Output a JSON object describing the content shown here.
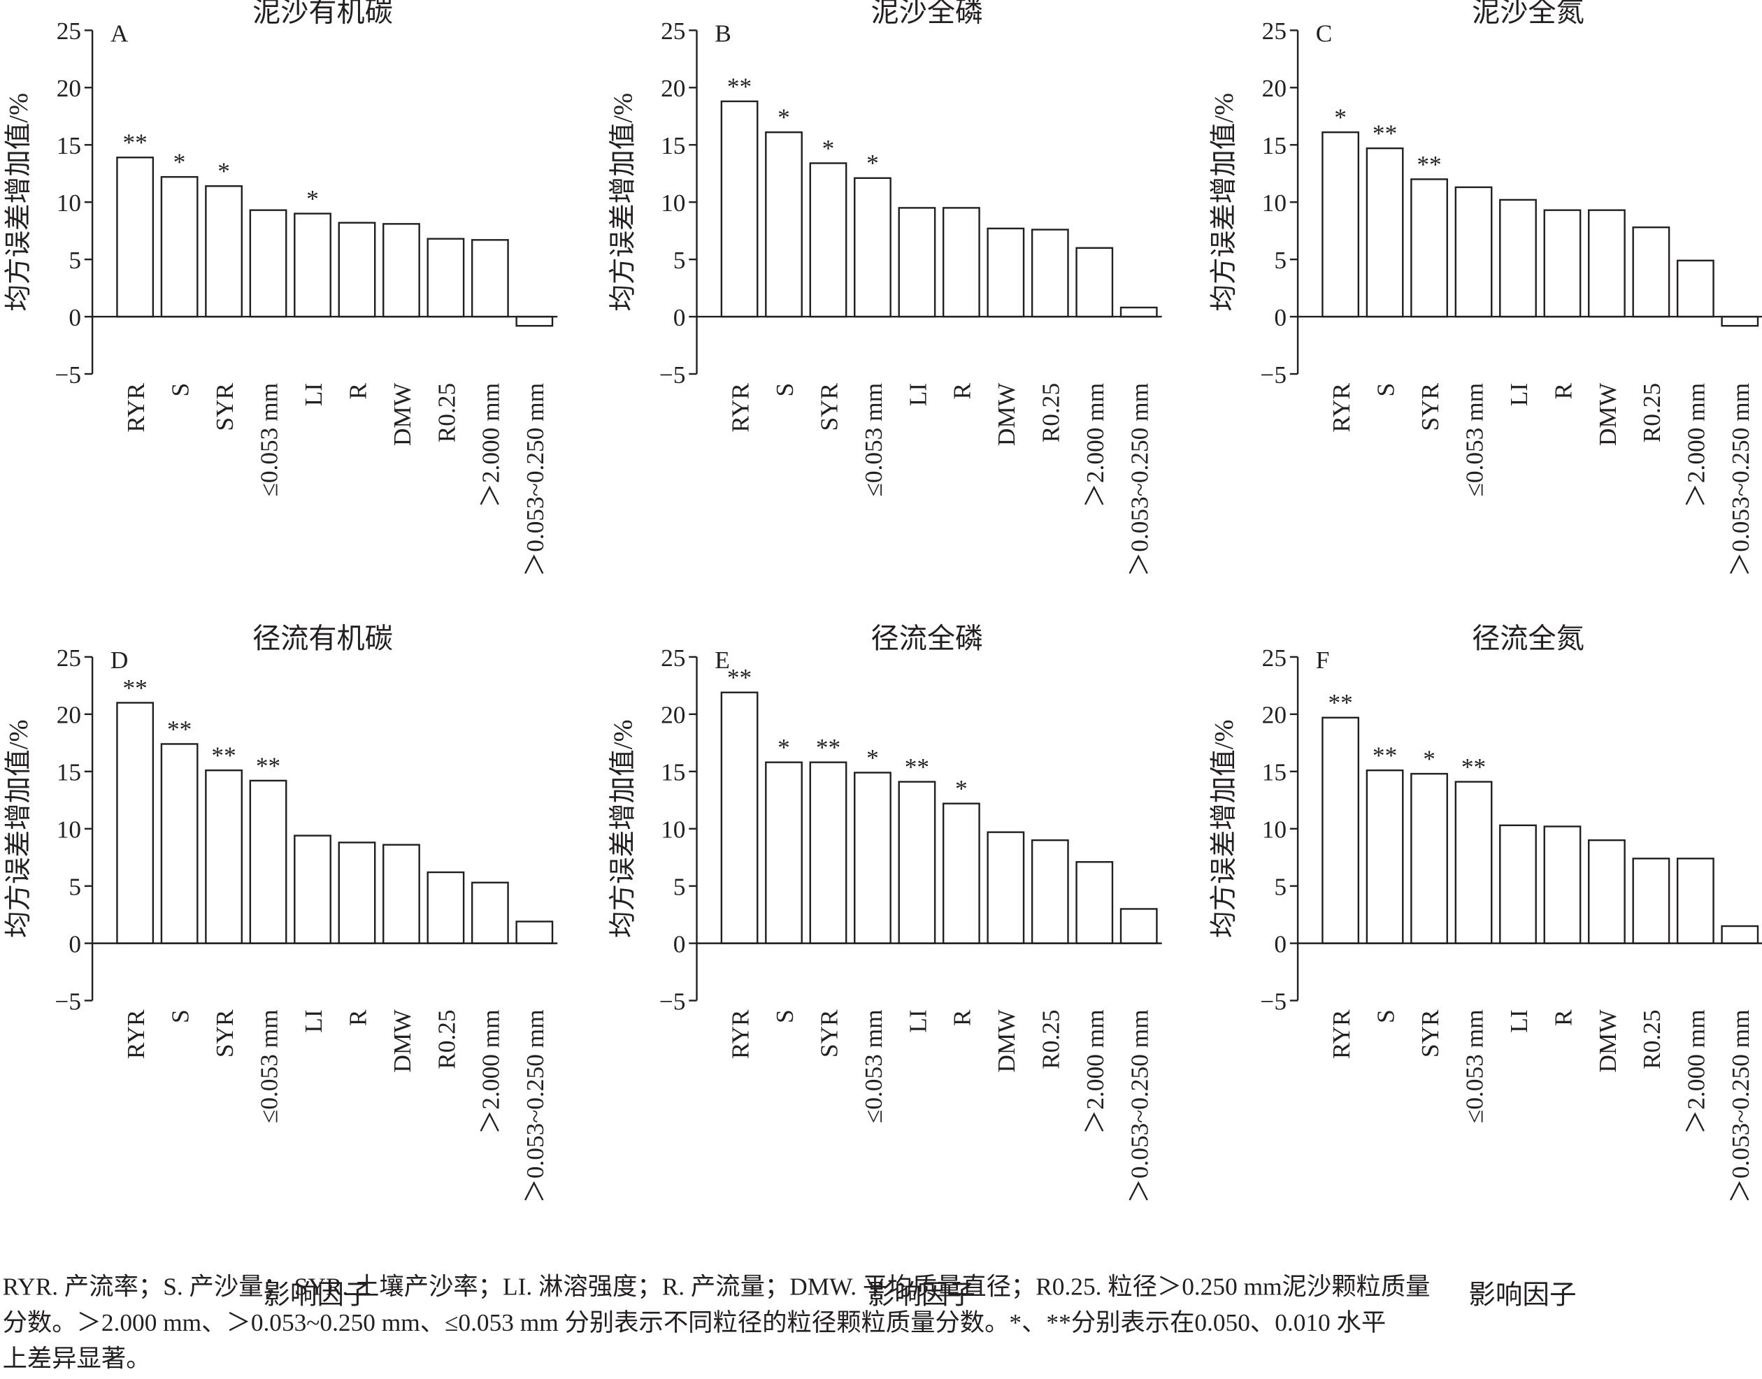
{
  "chart_data": [
    {
      "type": "bar",
      "panel": "A",
      "title": "泥沙有机碳",
      "ylabel": "均方误差增加值/%",
      "categories": [
        "RYR",
        "S",
        "SYR",
        "≤0.053 mm",
        "LI",
        "R",
        "DMW",
        "R0.25",
        "＞2.000 mm",
        "＞0.053~0.250 mm"
      ],
      "values": [
        13.9,
        12.2,
        11.4,
        9.3,
        9.0,
        8.2,
        8.1,
        6.8,
        6.7,
        -0.8
      ],
      "significance": [
        "**",
        "*",
        "*",
        null,
        "*",
        null,
        null,
        null,
        null,
        null
      ],
      "ylim": [
        -5,
        25
      ],
      "yticks": [
        {
          "value": -5,
          "label": "−5"
        },
        0,
        5,
        10,
        15,
        20,
        25
      ]
    },
    {
      "type": "bar",
      "panel": "B",
      "title": "泥沙全磷",
      "ylabel": "均方误差增加值/%",
      "categories": [
        "RYR",
        "S",
        "SYR",
        "≤0.053 mm",
        "LI",
        "R",
        "DMW",
        "R0.25",
        "＞2.000 mm",
        "＞0.053~0.250 mm"
      ],
      "values": [
        18.8,
        16.1,
        13.4,
        12.1,
        9.5,
        9.5,
        7.7,
        7.6,
        6.0,
        0.8
      ],
      "significance": [
        "**",
        "*",
        "*",
        "*",
        null,
        null,
        null,
        null,
        null,
        null
      ],
      "ylim": [
        -5,
        25
      ],
      "yticks": [
        {
          "value": -5,
          "label": "−5"
        },
        0,
        5,
        10,
        15,
        20,
        25
      ]
    },
    {
      "type": "bar",
      "panel": "C",
      "title": "泥沙全氮",
      "ylabel": "均方误差增加值/%",
      "categories": [
        "RYR",
        "S",
        "SYR",
        "≤0.053 mm",
        "LI",
        "R",
        "DMW",
        "R0.25",
        "＞2.000 mm",
        "＞0.053~0.250 mm"
      ],
      "values": [
        16.1,
        14.7,
        12.0,
        11.3,
        10.2,
        9.3,
        9.3,
        7.8,
        4.9,
        -0.8
      ],
      "significance": [
        "*",
        "**",
        "**",
        null,
        null,
        null,
        null,
        null,
        null,
        null
      ],
      "ylim": [
        -5,
        25
      ],
      "yticks": [
        {
          "value": -5,
          "label": "−5"
        },
        0,
        5,
        10,
        15,
        20,
        25
      ]
    },
    {
      "type": "bar",
      "panel": "D",
      "title": "径流有机碳",
      "ylabel": "均方误差增加值/%",
      "xlabel": "影响因子",
      "categories": [
        "RYR",
        "S",
        "SYR",
        "≤0.053 mm",
        "LI",
        "R",
        "DMW",
        "R0.25",
        "＞2.000 mm",
        "＞0.053~0.250 mm"
      ],
      "values": [
        21.0,
        17.4,
        15.1,
        14.2,
        9.4,
        8.8,
        8.6,
        6.2,
        5.3,
        1.9
      ],
      "significance": [
        "**",
        "**",
        "**",
        "**",
        null,
        null,
        null,
        null,
        null,
        null
      ],
      "ylim": [
        -5,
        25
      ],
      "yticks": [
        {
          "value": -5,
          "label": "−5"
        },
        0,
        5,
        10,
        15,
        20,
        25
      ]
    },
    {
      "type": "bar",
      "panel": "E",
      "title": "径流全磷",
      "ylabel": "均方误差增加值/%",
      "xlabel": "影响因子",
      "categories": [
        "RYR",
        "S",
        "SYR",
        "≤0.053 mm",
        "LI",
        "R",
        "DMW",
        "R0.25",
        "＞2.000 mm",
        "＞0.053~0.250 mm"
      ],
      "values": [
        21.9,
        15.8,
        15.8,
        14.9,
        14.1,
        12.2,
        9.7,
        9.0,
        7.1,
        3.0
      ],
      "significance": [
        "**",
        "*",
        "**",
        "*",
        "**",
        "*",
        null,
        null,
        null,
        null
      ],
      "ylim": [
        -5,
        25
      ],
      "yticks": [
        {
          "value": -5,
          "label": "−5"
        },
        0,
        5,
        10,
        15,
        20,
        25
      ]
    },
    {
      "type": "bar",
      "panel": "F",
      "title": "径流全氮",
      "ylabel": "均方误差增加值/%",
      "xlabel": "影响因子",
      "categories": [
        "RYR",
        "S",
        "SYR",
        "≤0.053 mm",
        "LI",
        "R",
        "DMW",
        "R0.25",
        "＞2.000 mm",
        "＞0.053~0.250 mm"
      ],
      "values": [
        19.7,
        15.1,
        14.8,
        14.1,
        10.3,
        10.2,
        9.0,
        7.4,
        7.4,
        1.5
      ],
      "significance": [
        "**",
        "**",
        "*",
        "**",
        null,
        null,
        null,
        null,
        null,
        null
      ],
      "ylim": [
        -5,
        25
      ],
      "yticks": [
        {
          "value": -5,
          "label": "−5"
        },
        0,
        5,
        10,
        15,
        20,
        25
      ]
    }
  ],
  "note": [
    "RYR. 产流率；S. 产沙量； SYR. 土壤产沙率；LI. 淋溶强度；R. 产流量；DMW. 平均质量直径；R0.25. 粒径＞0.250 mm泥沙颗粒质量",
    "分数。＞2.000 mm、＞0.053~0.250 mm、≤0.053 mm 分别表示不同粒径的粒径颗粒质量分数。*、**分别表示在0.050、0.010 水平",
    "上差异显著。"
  ]
}
